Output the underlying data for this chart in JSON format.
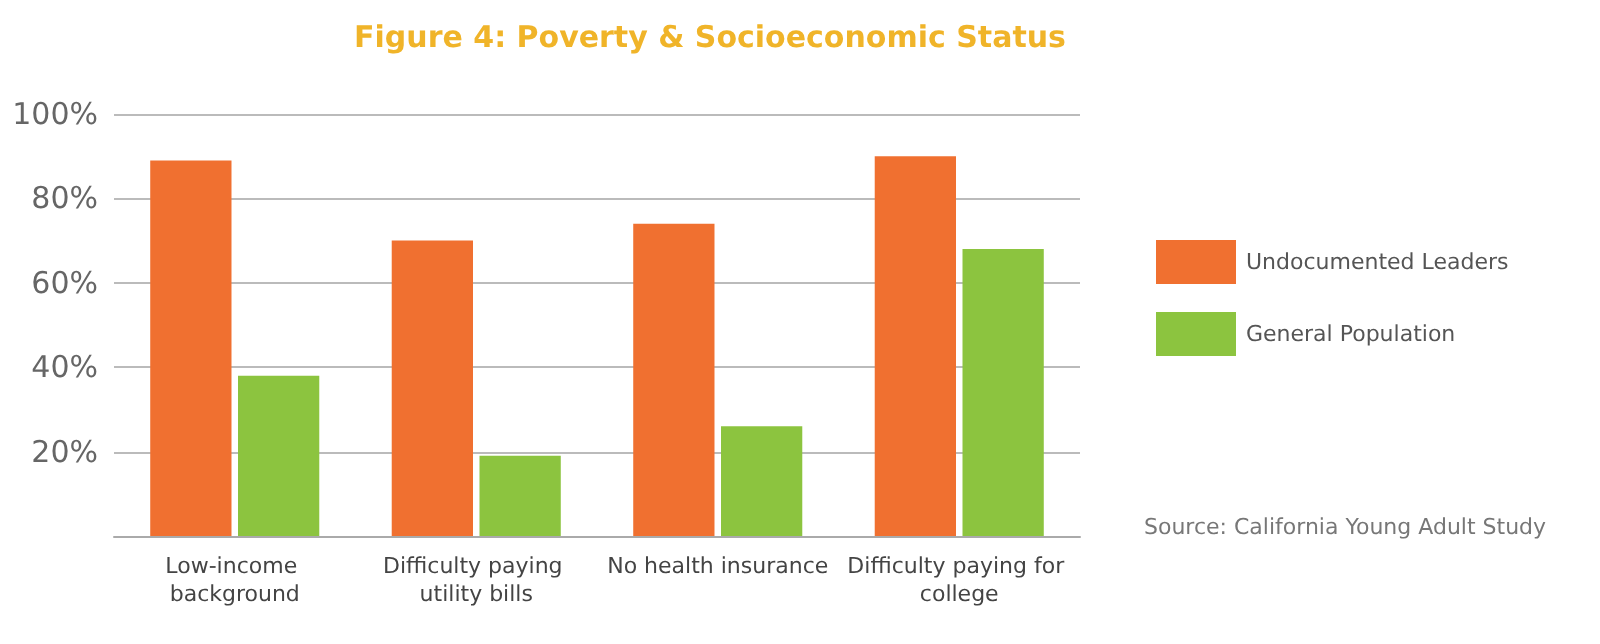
{
  "chart_data": {
    "type": "bar",
    "title": "Figure 4: Poverty & Socioeconomic Status",
    "categories": [
      "Low-income background",
      "Difficulty paying utility bills",
      "No health insurance",
      "Difficulty paying for college"
    ],
    "series": [
      {
        "name": "Undocumented Leaders",
        "color": "#f07030",
        "values": [
          89,
          70,
          74,
          90
        ]
      },
      {
        "name": "General Population",
        "color": "#8cc43f",
        "values": [
          38,
          19,
          26,
          68
        ]
      }
    ],
    "ylim": [
      0,
      100
    ],
    "yticks": [
      {
        "value": 0,
        "label": null
      },
      {
        "value": 20,
        "label": "20%"
      },
      {
        "value": 40,
        "label": "40%"
      },
      {
        "value": 60,
        "label": "60%"
      },
      {
        "value": 80,
        "label": "80%"
      },
      {
        "value": 100,
        "label": "100%"
      }
    ],
    "grid": "y",
    "legend": "right",
    "annotations": [
      "Source: California Young Adult Study"
    ]
  }
}
